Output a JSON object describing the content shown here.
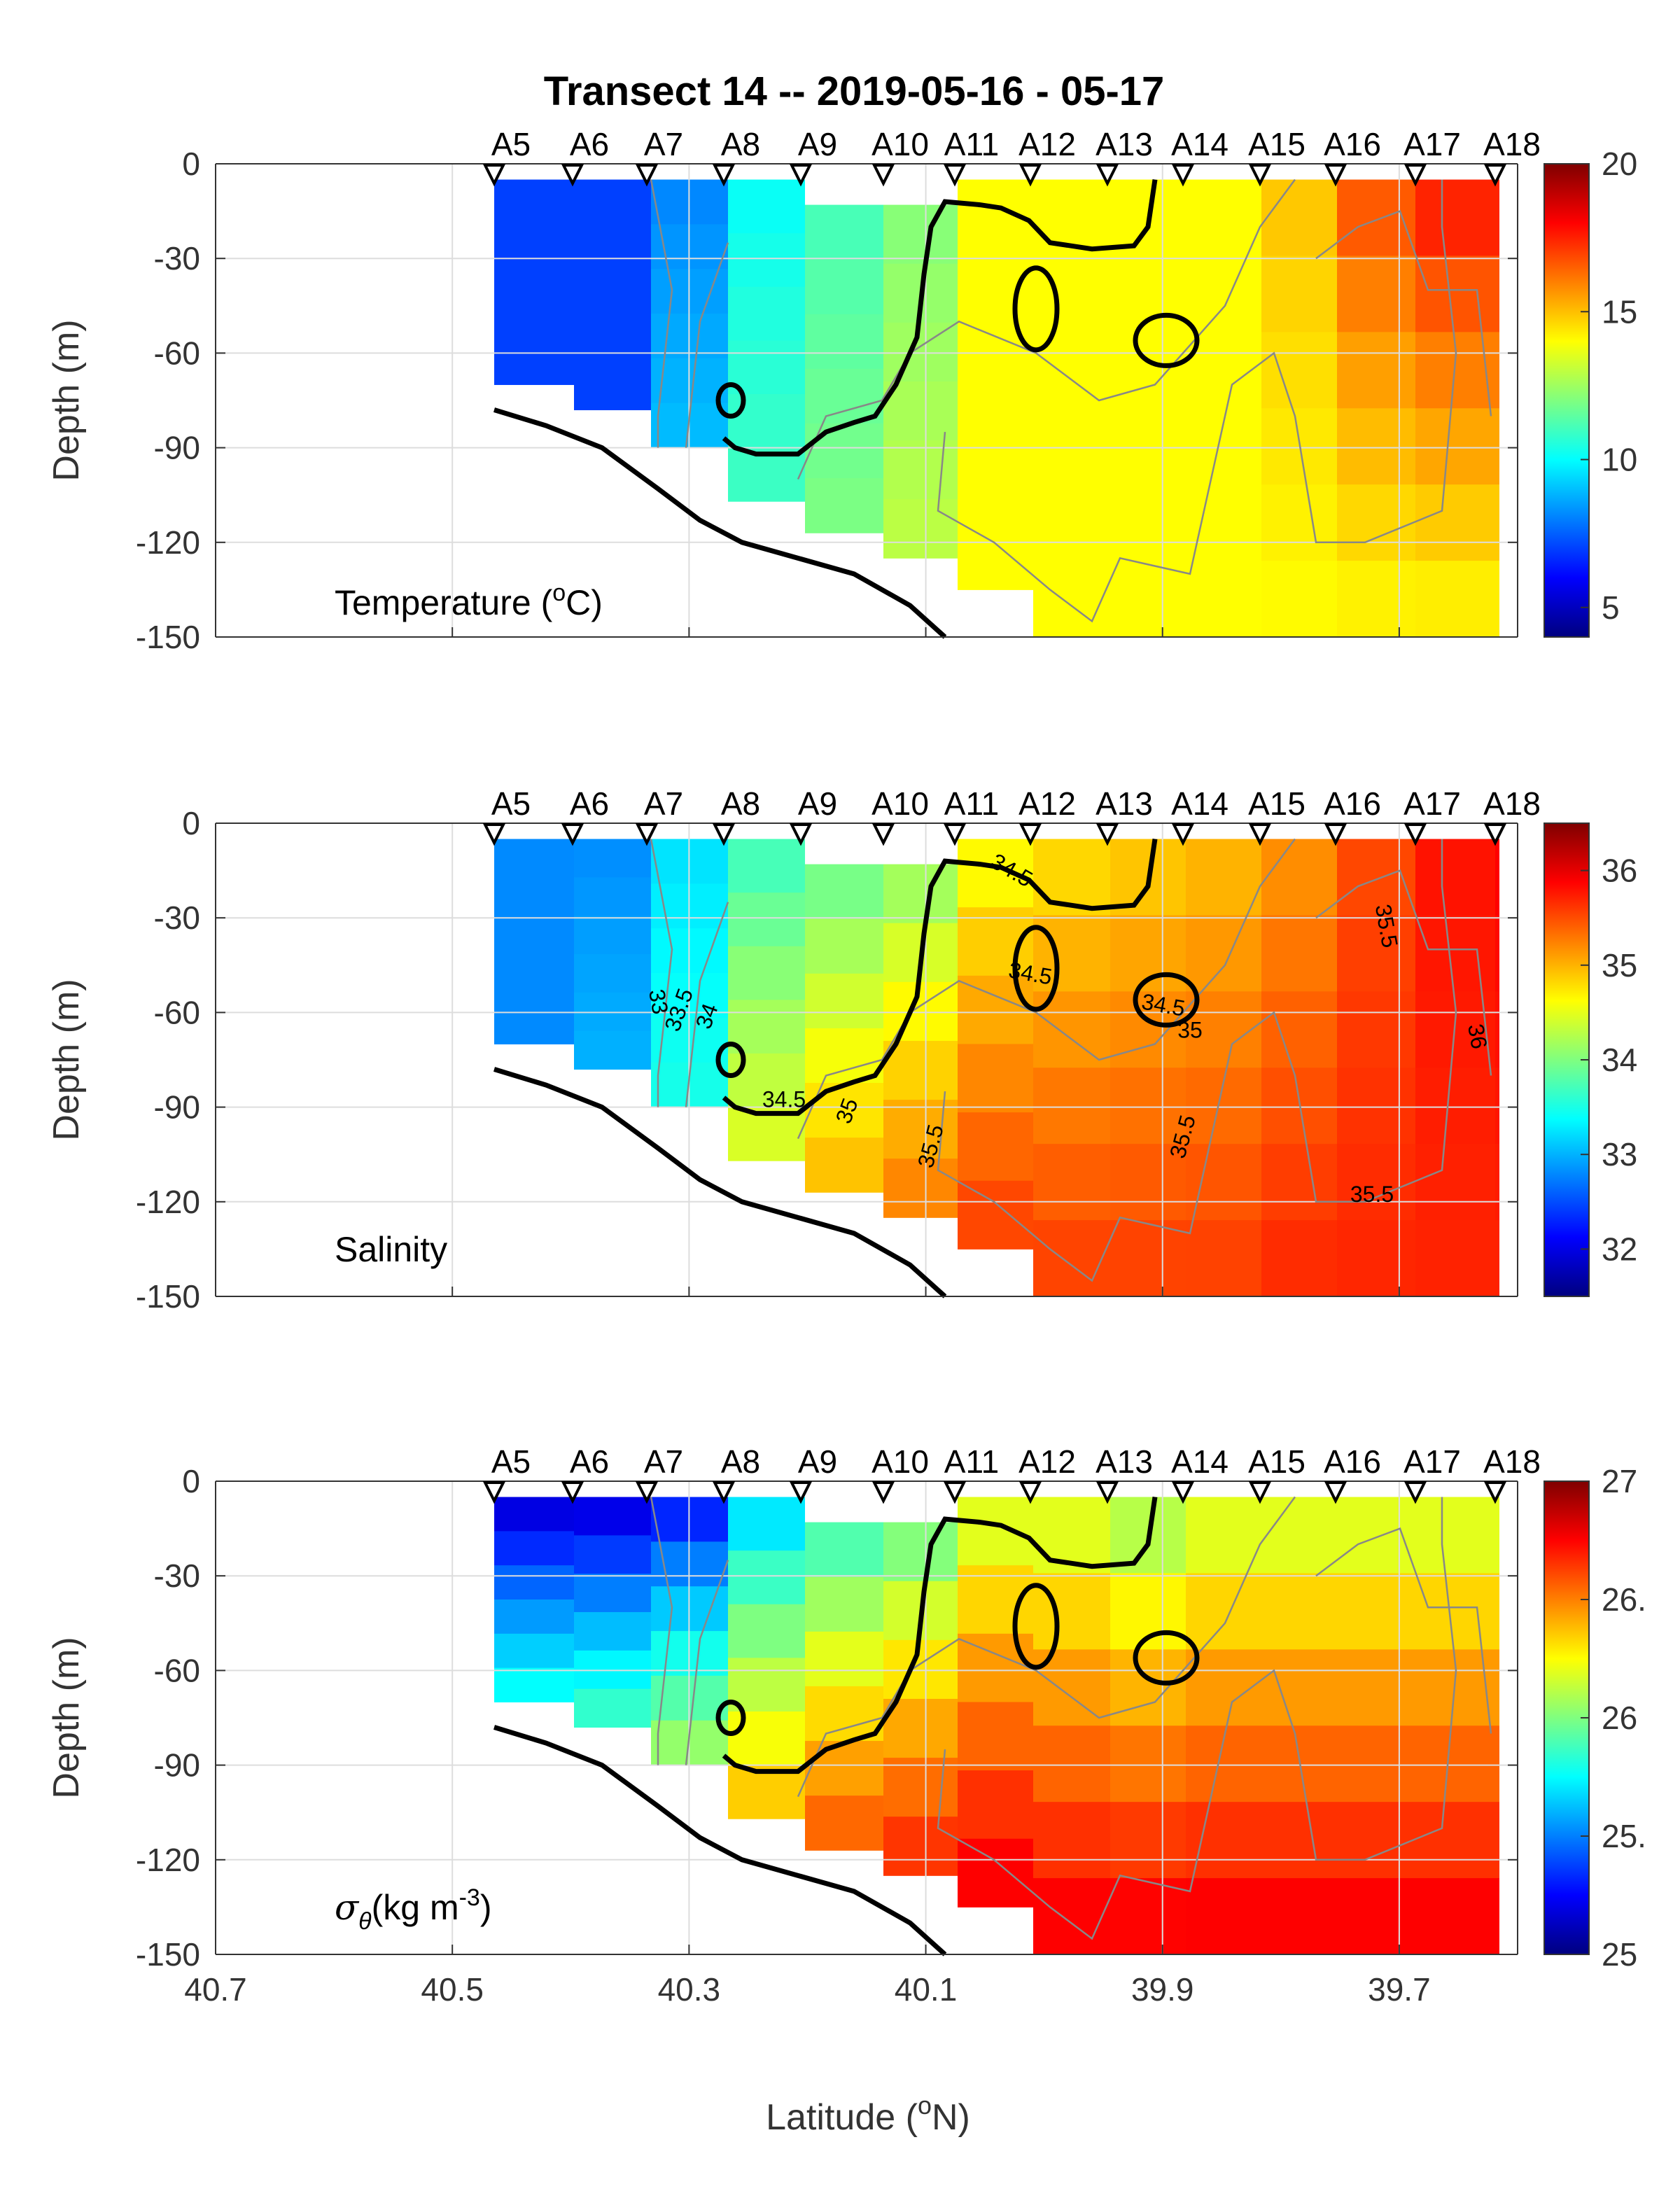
{
  "title": "Transect 14 -- 2019-05-16 - 05-17",
  "xlabel": "Latitude (°N)",
  "ylabel": "Depth (m)",
  "x_ticks": [
    "40.7",
    "40.5",
    "40.3",
    "40.1",
    "39.9",
    "39.7"
  ],
  "y_ticks": [
    "0",
    "-30",
    "-60",
    "-90",
    "-120",
    "-150"
  ],
  "stations": [
    "A5",
    "A6",
    "A7",
    "A8",
    "A9",
    "A10",
    "A11",
    "A12",
    "A13",
    "A14",
    "A15",
    "A16",
    "A17",
    "A18"
  ],
  "panel_labels": {
    "temperature": "Temperature (°C)",
    "salinity": "Salinity",
    "sigma": "σθ(kg m-3)"
  },
  "colorbars": {
    "temperature": [
      "20",
      "15",
      "10",
      "5"
    ],
    "salinity": [
      "36",
      "35",
      "34",
      "33",
      "32"
    ],
    "sigma": [
      "27",
      "26.",
      "26",
      "25.",
      "25"
    ]
  },
  "contour_labels": {
    "salinity": [
      "34.5",
      "34.5",
      "34.5",
      "35",
      "33",
      "33.5",
      "34",
      "34.5",
      "35",
      "35.5",
      "35.5",
      "35.5",
      "35.5",
      "36"
    ]
  },
  "colors": {
    "contour": "#888888",
    "bold_contour": "#000000",
    "bathymetry": "#000000"
  },
  "chart_data": [
    {
      "type": "heatmap",
      "variable": "Temperature",
      "x": [
        40.45,
        40.39,
        40.33,
        40.26,
        40.2,
        40.14,
        40.08,
        40.02,
        39.96,
        39.9,
        39.84,
        39.77,
        39.71,
        39.65
      ],
      "x_stations": [
        "A5",
        "A6",
        "A7",
        "A8",
        "A9",
        "A10",
        "A11",
        "A12",
        "A13",
        "A14",
        "A15",
        "A16",
        "A17",
        "A18"
      ],
      "xlim": [
        40.7,
        39.6
      ],
      "ylim": [
        -150,
        0
      ],
      "colorbar_range": [
        4,
        20
      ],
      "surface_values": [
        7,
        7,
        8,
        10,
        11,
        12,
        14,
        14,
        14,
        14,
        15,
        17,
        18,
        18
      ],
      "bottom_values": [
        7,
        7,
        9,
        11,
        12,
        13,
        14,
        14,
        14,
        14,
        14,
        14,
        14,
        14
      ]
    },
    {
      "type": "heatmap",
      "variable": "Salinity",
      "x": [
        40.45,
        40.39,
        40.33,
        40.26,
        40.2,
        40.14,
        40.08,
        40.02,
        39.96,
        39.9,
        39.84,
        39.77,
        39.71,
        39.65
      ],
      "xlim": [
        40.7,
        39.6
      ],
      "ylim": [
        -150,
        0
      ],
      "colorbar_range": [
        31.5,
        36.5
      ],
      "surface_values": [
        32.8,
        32.8,
        33.2,
        33.6,
        33.8,
        34.0,
        34.5,
        34.7,
        34.8,
        34.9,
        35.1,
        35.5,
        35.8,
        35.9
      ],
      "bottom_values": [
        32.8,
        33.0,
        33.5,
        34.5,
        35.0,
        35.3,
        35.6,
        35.6,
        35.6,
        35.6,
        35.7,
        35.7,
        35.7,
        35.7
      ],
      "contours": [
        33,
        33.5,
        34,
        34.3,
        34.5,
        35,
        35.5,
        36
      ]
    },
    {
      "type": "heatmap",
      "variable": "Potential density",
      "x": [
        40.45,
        40.39,
        40.33,
        40.26,
        40.2,
        40.14,
        40.08,
        40.02,
        39.96,
        39.9,
        39.84,
        39.77,
        39.71,
        39.65
      ],
      "xlim": [
        40.7,
        39.6
      ],
      "ylim": [
        -150,
        0
      ],
      "colorbar_range": [
        25,
        27
      ],
      "surface_values": [
        25.1,
        25.1,
        25.2,
        25.6,
        25.8,
        25.9,
        26.1,
        26.1,
        26.0,
        26.1,
        26.1,
        26.1,
        26.1,
        26.1
      ],
      "bottom_values": [
        25.8,
        25.9,
        26.1,
        26.4,
        26.6,
        26.7,
        26.8,
        26.8,
        26.8,
        26.8,
        26.8,
        26.8,
        26.8,
        26.8
      ]
    }
  ]
}
